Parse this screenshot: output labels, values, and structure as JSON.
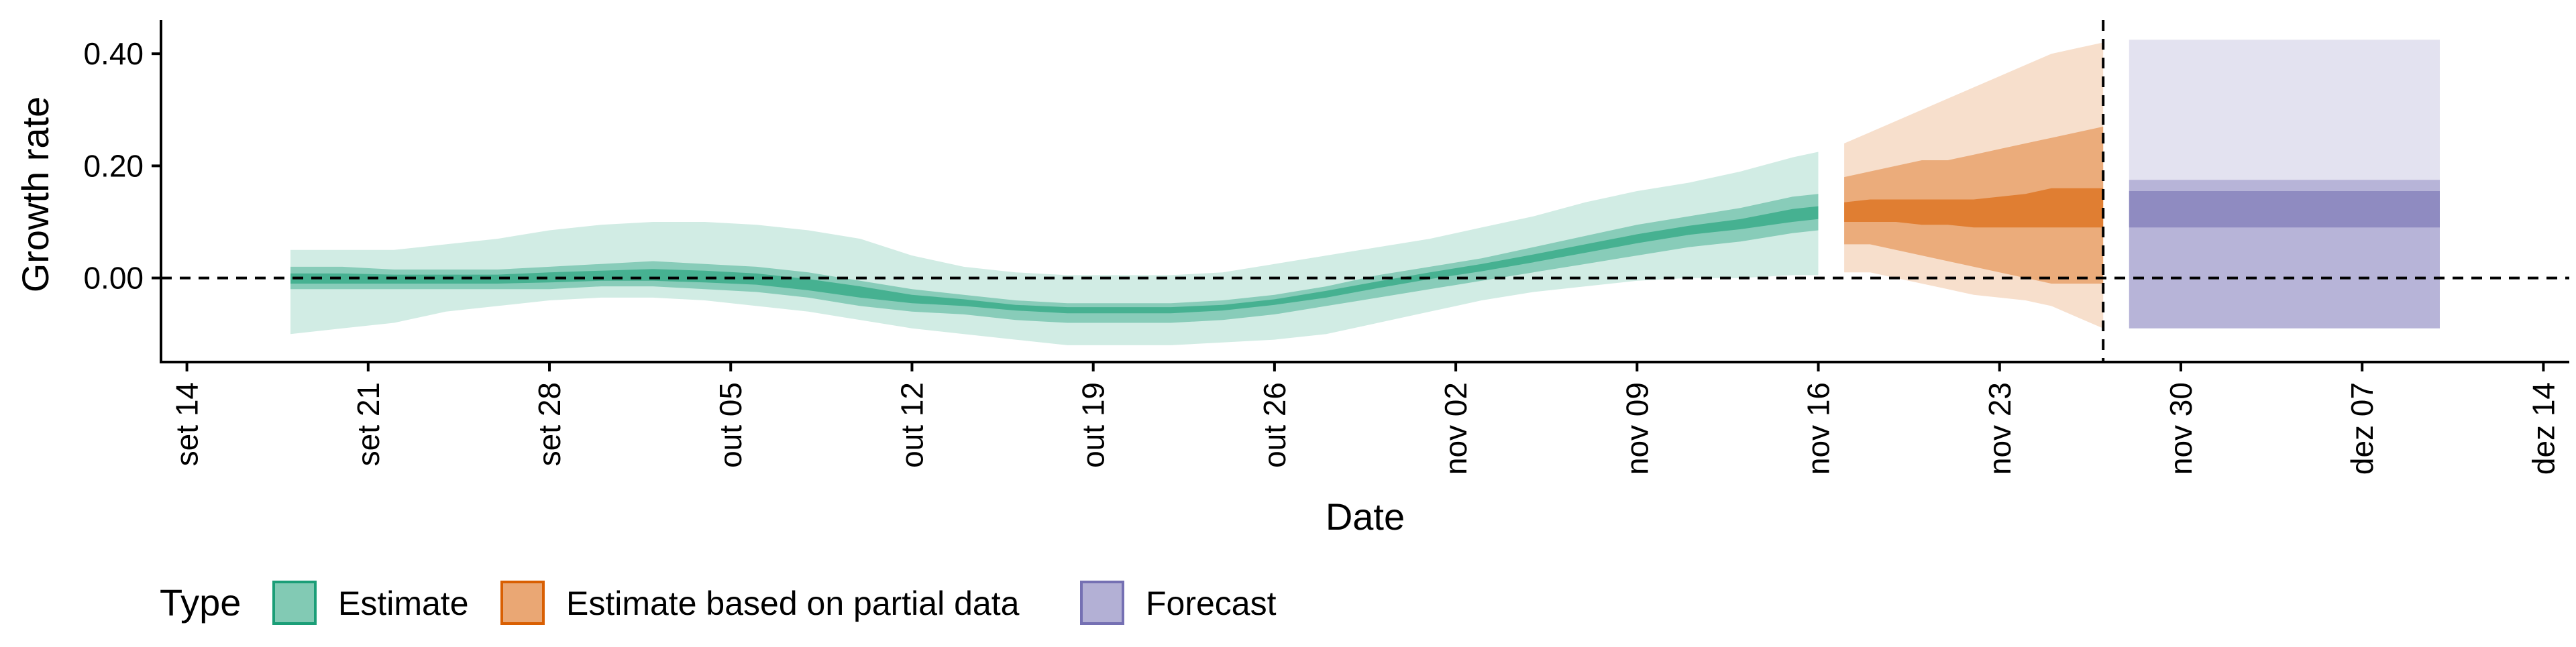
{
  "chart_data": {
    "type": "area",
    "xlabel": "Date",
    "ylabel": "Growth rate",
    "x_axis": {
      "type": "date",
      "range": [
        "2020-09-13",
        "2020-12-15"
      ],
      "ticks": [
        {
          "date": "2020-09-14",
          "label": "set 14"
        },
        {
          "date": "2020-09-21",
          "label": "set 21"
        },
        {
          "date": "2020-09-28",
          "label": "set 28"
        },
        {
          "date": "2020-10-05",
          "label": "out 05"
        },
        {
          "date": "2020-10-12",
          "label": "out 12"
        },
        {
          "date": "2020-10-19",
          "label": "out 19"
        },
        {
          "date": "2020-10-26",
          "label": "out 26"
        },
        {
          "date": "2020-11-02",
          "label": "nov 02"
        },
        {
          "date": "2020-11-09",
          "label": "nov 09"
        },
        {
          "date": "2020-11-16",
          "label": "nov 16"
        },
        {
          "date": "2020-11-23",
          "label": "nov 23"
        },
        {
          "date": "2020-11-30",
          "label": "nov 30"
        },
        {
          "date": "2020-12-07",
          "label": "dez 07"
        },
        {
          "date": "2020-12-14",
          "label": "dez 14"
        }
      ]
    },
    "y_axis": {
      "range": [
        -0.15,
        0.46
      ],
      "ticks": [
        {
          "value": 0.0,
          "label": "0.00"
        },
        {
          "value": 0.2,
          "label": "0.20"
        },
        {
          "value": 0.4,
          "label": "0.40"
        }
      ]
    },
    "reference_lines": {
      "horizontal_y": 0,
      "vertical_date": "2020-11-27"
    },
    "grid": false,
    "legend": {
      "title": "Type",
      "position": "bottom",
      "entries": [
        {
          "label": "Estimate",
          "fill": "#1b9e77",
          "outline": "#1b9e77"
        },
        {
          "label": "Estimate based on partial data",
          "fill": "#d95f02",
          "outline": "#d95f02"
        },
        {
          "label": "Forecast",
          "fill": "#7570b3",
          "outline": "#7570b3"
        }
      ]
    },
    "series": [
      {
        "name": "Estimate",
        "color": "#1b9e77",
        "dates": [
          "2020-09-18",
          "2020-09-20",
          "2020-09-22",
          "2020-09-24",
          "2020-09-26",
          "2020-09-28",
          "2020-09-30",
          "2020-10-02",
          "2020-10-04",
          "2020-10-06",
          "2020-10-08",
          "2020-10-10",
          "2020-10-12",
          "2020-10-14",
          "2020-10-16",
          "2020-10-18",
          "2020-10-20",
          "2020-10-22",
          "2020-10-24",
          "2020-10-26",
          "2020-10-28",
          "2020-10-30",
          "2020-11-01",
          "2020-11-03",
          "2020-11-05",
          "2020-11-07",
          "2020-11-09",
          "2020-11-11",
          "2020-11-13",
          "2020-11-15",
          "2020-11-16"
        ],
        "bands": [
          {
            "level": "outer",
            "lower": [
              -0.1,
              -0.09,
              -0.08,
              -0.06,
              -0.05,
              -0.04,
              -0.035,
              -0.035,
              -0.04,
              -0.05,
              -0.06,
              -0.075,
              -0.09,
              -0.1,
              -0.11,
              -0.12,
              -0.12,
              -0.12,
              -0.115,
              -0.11,
              -0.1,
              -0.08,
              -0.06,
              -0.04,
              -0.025,
              -0.015,
              -0.005,
              0.0,
              0.0,
              0.005,
              0.005
            ],
            "upper": [
              0.05,
              0.05,
              0.05,
              0.06,
              0.07,
              0.085,
              0.095,
              0.1,
              0.1,
              0.095,
              0.085,
              0.07,
              0.04,
              0.02,
              0.01,
              0.005,
              0.005,
              0.005,
              0.01,
              0.025,
              0.04,
              0.055,
              0.07,
              0.09,
              0.11,
              0.135,
              0.155,
              0.17,
              0.19,
              0.215,
              0.225
            ]
          },
          {
            "level": "middle",
            "lower": [
              -0.02,
              -0.02,
              -0.02,
              -0.02,
              -0.02,
              -0.02,
              -0.015,
              -0.015,
              -0.02,
              -0.025,
              -0.035,
              -0.05,
              -0.06,
              -0.065,
              -0.075,
              -0.08,
              -0.08,
              -0.08,
              -0.075,
              -0.065,
              -0.05,
              -0.035,
              -0.02,
              -0.005,
              0.01,
              0.025,
              0.04,
              0.055,
              0.065,
              0.08,
              0.085
            ],
            "upper": [
              0.02,
              0.02,
              0.015,
              0.015,
              0.015,
              0.02,
              0.025,
              0.03,
              0.025,
              0.02,
              0.01,
              -0.005,
              -0.02,
              -0.03,
              -0.04,
              -0.045,
              -0.045,
              -0.045,
              -0.04,
              -0.03,
              -0.015,
              0.005,
              0.02,
              0.035,
              0.055,
              0.075,
              0.095,
              0.11,
              0.125,
              0.145,
              0.15
            ]
          },
          {
            "level": "inner",
            "lower": [
              -0.01,
              -0.01,
              -0.01,
              -0.01,
              -0.01,
              -0.008,
              -0.005,
              -0.005,
              -0.008,
              -0.012,
              -0.022,
              -0.035,
              -0.045,
              -0.05,
              -0.058,
              -0.063,
              -0.063,
              -0.063,
              -0.058,
              -0.048,
              -0.035,
              -0.018,
              -0.002,
              0.012,
              0.028,
              0.045,
              0.062,
              0.077,
              0.087,
              0.1,
              0.105
            ],
            "upper": [
              0.008,
              0.008,
              0.006,
              0.006,
              0.006,
              0.01,
              0.013,
              0.016,
              0.013,
              0.008,
              -0.002,
              -0.015,
              -0.03,
              -0.038,
              -0.048,
              -0.052,
              -0.052,
              -0.052,
              -0.048,
              -0.038,
              -0.023,
              -0.006,
              0.01,
              0.025,
              0.042,
              0.06,
              0.078,
              0.093,
              0.105,
              0.123,
              0.128
            ]
          }
        ]
      },
      {
        "name": "Estimate based on partial data",
        "color": "#d95f02",
        "dates": [
          "2020-11-17",
          "2020-11-18",
          "2020-11-19",
          "2020-11-20",
          "2020-11-21",
          "2020-11-22",
          "2020-11-23",
          "2020-11-24",
          "2020-11-25",
          "2020-11-26",
          "2020-11-27"
        ],
        "bands": [
          {
            "level": "outer",
            "lower": [
              0.01,
              0.01,
              0.0,
              -0.01,
              -0.02,
              -0.03,
              -0.035,
              -0.04,
              -0.05,
              -0.07,
              -0.09
            ],
            "upper": [
              0.24,
              0.26,
              0.28,
              0.3,
              0.32,
              0.34,
              0.36,
              0.38,
              0.4,
              0.41,
              0.42
            ]
          },
          {
            "level": "middle",
            "lower": [
              0.06,
              0.06,
              0.05,
              0.04,
              0.03,
              0.02,
              0.01,
              0.0,
              -0.01,
              -0.01,
              -0.01
            ],
            "upper": [
              0.18,
              0.19,
              0.2,
              0.21,
              0.21,
              0.22,
              0.23,
              0.24,
              0.25,
              0.26,
              0.27
            ]
          },
          {
            "level": "inner",
            "lower": [
              0.1,
              0.1,
              0.1,
              0.095,
              0.095,
              0.09,
              0.09,
              0.09,
              0.09,
              0.09,
              0.09
            ],
            "upper": [
              0.135,
              0.14,
              0.14,
              0.14,
              0.14,
              0.14,
              0.145,
              0.15,
              0.16,
              0.16,
              0.16
            ]
          }
        ]
      },
      {
        "name": "Forecast",
        "color": "#7570b3",
        "dates": [
          "2020-11-28",
          "2020-12-10"
        ],
        "bands": [
          {
            "level": "outer",
            "lower": [
              -0.09,
              -0.09
            ],
            "upper": [
              0.425,
              0.425
            ]
          },
          {
            "level": "middle",
            "lower": [
              -0.09,
              -0.09
            ],
            "upper": [
              0.175,
              0.175
            ]
          },
          {
            "level": "inner",
            "lower": [
              0.09,
              0.09
            ],
            "upper": [
              0.155,
              0.155
            ]
          }
        ]
      }
    ]
  }
}
